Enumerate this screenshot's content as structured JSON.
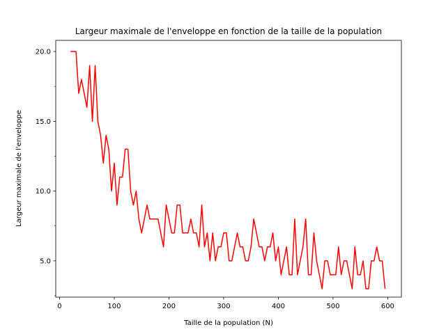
{
  "chart_data": {
    "type": "line",
    "title": "Largeur maximale de l'enveloppe en fonction de la taille de la population",
    "xlabel": "Taille de la population (N)",
    "ylabel": "Largeur maximale de l'enveloppe",
    "xlim": [
      -7,
      625
    ],
    "ylim": [
      2.4,
      20.8
    ],
    "xticks": [
      0,
      100,
      200,
      300,
      400,
      500,
      600
    ],
    "xtick_labels": [
      "0",
      "100",
      "200",
      "300",
      "400",
      "500",
      "600"
    ],
    "yticks": [
      5.0,
      10.0,
      15.0,
      20.0
    ],
    "ytick_labels": [
      "5.0",
      "10.0",
      "15.0",
      "20.0"
    ],
    "yticks_minor": [
      2.5,
      7.5,
      12.5,
      17.5
    ],
    "grid": false,
    "series": [
      {
        "color": "#ff0000",
        "x": [
          20,
          25,
          30,
          35,
          40,
          45,
          50,
          55,
          60,
          65,
          70,
          75,
          80,
          85,
          90,
          95,
          100,
          105,
          110,
          115,
          120,
          125,
          130,
          135,
          140,
          145,
          150,
          155,
          160,
          165,
          170,
          175,
          180,
          185,
          190,
          195,
          200,
          205,
          210,
          215,
          220,
          225,
          230,
          235,
          240,
          245,
          250,
          255,
          260,
          265,
          270,
          275,
          280,
          285,
          290,
          295,
          300,
          305,
          310,
          315,
          320,
          325,
          330,
          335,
          340,
          345,
          350,
          355,
          360,
          365,
          370,
          375,
          380,
          385,
          390,
          395,
          400,
          405,
          410,
          415,
          420,
          425,
          430,
          435,
          440,
          445,
          450,
          455,
          460,
          465,
          470,
          475,
          480,
          485,
          490,
          495,
          500,
          505,
          510,
          515,
          520,
          525,
          530,
          535,
          540,
          545,
          550,
          555,
          560,
          565,
          570,
          575,
          580,
          585,
          590,
          595
        ],
        "y": [
          20,
          20,
          20,
          17,
          18,
          17,
          16,
          19,
          15,
          19,
          15,
          14,
          12,
          14,
          13,
          10,
          12,
          9,
          11,
          11,
          13,
          13,
          10,
          9,
          10,
          8,
          7,
          8,
          9,
          8,
          8,
          8,
          8,
          7,
          6,
          9,
          8,
          7,
          7,
          9,
          9,
          7,
          7,
          7,
          8,
          7,
          7,
          6,
          9,
          6,
          7,
          5,
          7,
          5,
          6,
          6,
          7,
          7,
          5,
          5,
          6,
          7,
          6,
          6,
          5,
          5,
          6,
          8,
          7,
          6,
          6,
          5,
          6,
          6,
          7,
          5,
          6,
          4,
          5,
          6,
          4,
          4,
          8,
          4,
          5,
          6,
          8,
          4,
          4,
          7,
          5,
          4,
          3,
          5,
          5,
          4,
          4,
          4,
          6,
          4,
          5,
          5,
          4,
          3,
          6,
          4,
          4,
          5,
          3,
          3,
          5,
          5,
          6,
          5,
          5,
          3
        ]
      }
    ]
  }
}
